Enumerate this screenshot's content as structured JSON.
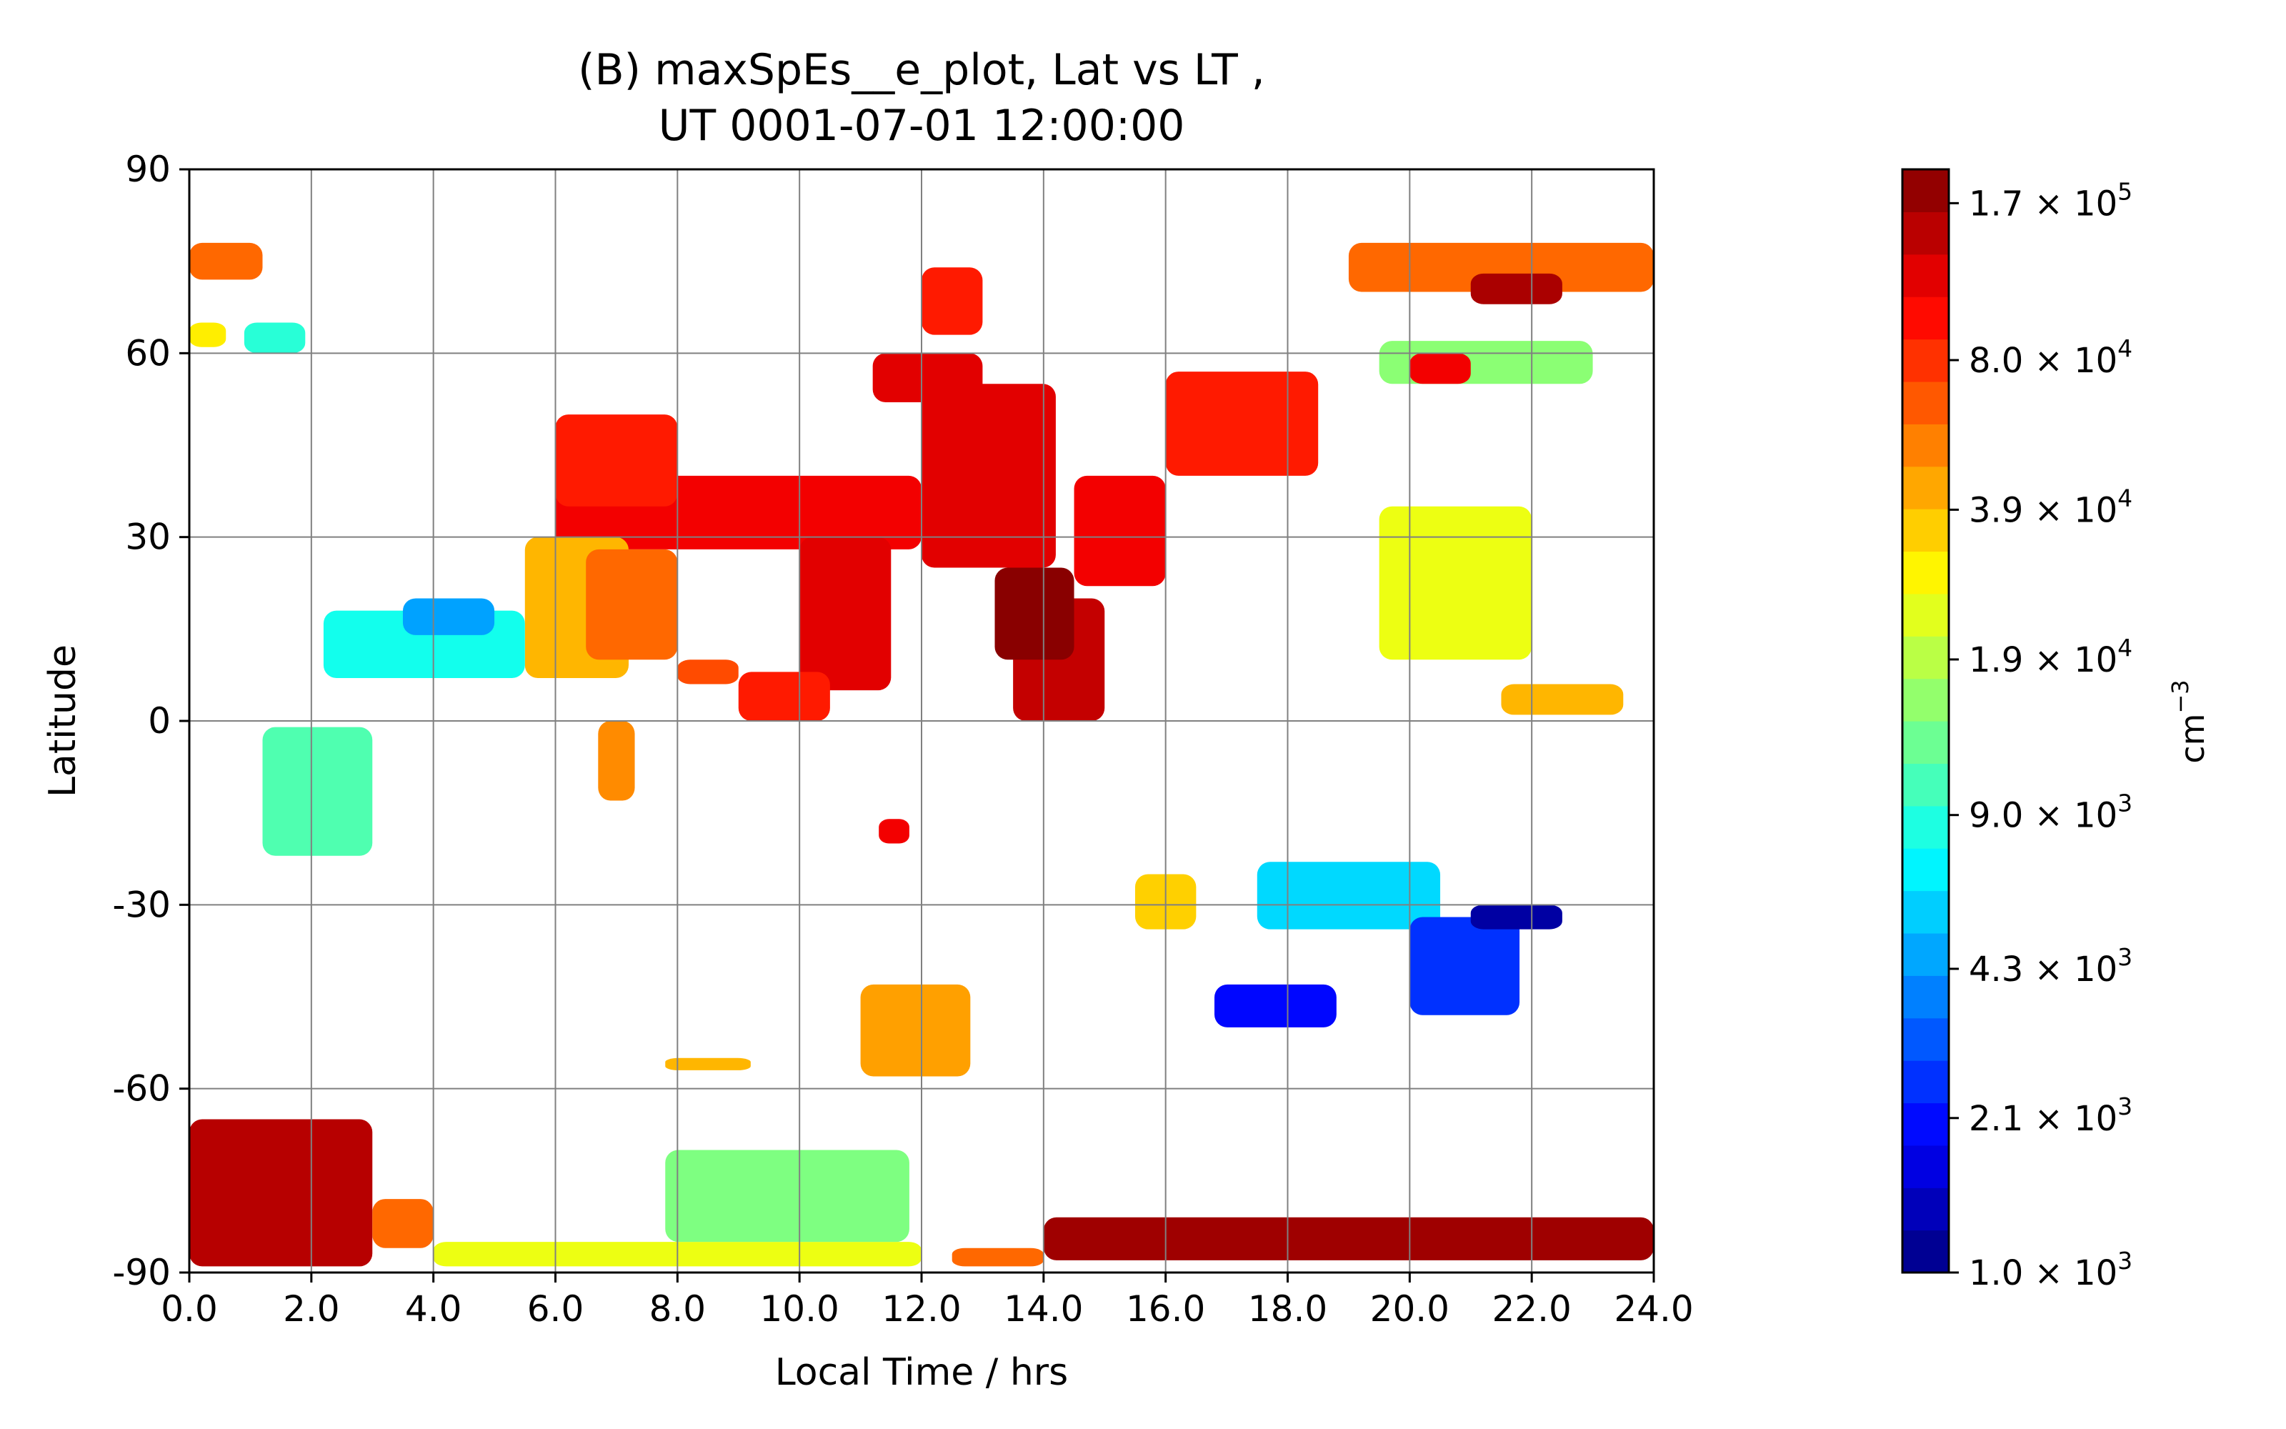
{
  "chart_data": {
    "type": "heatmap",
    "plot_style": "filled contour, log-scaled colour levels (jet colormap)",
    "title_line1": "(B) maxSpEs__e_plot, Lat vs LT ,",
    "title_line2": "UT 0001-07-01 12:00:00",
    "xlabel": "Local Time / hrs",
    "ylabel": "Latitude",
    "xlim": [
      0,
      24
    ],
    "ylim": [
      -90,
      90
    ],
    "x_ticks": [
      0,
      2,
      4,
      6,
      8,
      10,
      12,
      14,
      16,
      18,
      20,
      22,
      24
    ],
    "x_tick_labels": [
      "0.0",
      "2.0",
      "4.0",
      "6.0",
      "8.0",
      "10.0",
      "12.0",
      "14.0",
      "16.0",
      "18.0",
      "20.0",
      "22.0",
      "24.0"
    ],
    "y_ticks": [
      90,
      60,
      30,
      0,
      -30,
      -60,
      -90
    ],
    "y_tick_labels": [
      "90",
      "60",
      "30",
      "0",
      "-30",
      "-60",
      "-90"
    ],
    "grid": true,
    "colorbar": {
      "label_base": "cm",
      "label_exp": "−3",
      "scale": "log",
      "min": 1000,
      "max": 200000,
      "ticks": [
        {
          "value": 170000,
          "mant": "1.7",
          "exp": "5"
        },
        {
          "value": 80000,
          "mant": "8.0",
          "exp": "4"
        },
        {
          "value": 39000,
          "mant": "3.9",
          "exp": "4"
        },
        {
          "value": 19000,
          "mant": "1.9",
          "exp": "4"
        },
        {
          "value": 9000,
          "mant": "9.0",
          "exp": "3"
        },
        {
          "value": 4300,
          "mant": "4.3",
          "exp": "3"
        },
        {
          "value": 2100,
          "mant": "2.1",
          "exp": "3"
        },
        {
          "value": 1000,
          "mant": "1.0",
          "exp": "3"
        }
      ]
    },
    "regions": [
      {
        "lt": [
          0,
          1.2
        ],
        "lat": [
          72,
          78
        ],
        "value": 60000
      },
      {
        "lt": [
          0,
          0.6
        ],
        "lat": [
          61,
          65
        ],
        "value": 30000
      },
      {
        "lt": [
          0.9,
          1.9
        ],
        "lat": [
          60,
          65
        ],
        "value": 9000
      },
      {
        "lt": [
          6,
          12
        ],
        "lat": [
          28,
          40
        ],
        "value": 110000
      },
      {
        "lt": [
          6,
          8
        ],
        "lat": [
          35,
          50
        ],
        "value": 90000
      },
      {
        "lt": [
          5.5,
          7.2
        ],
        "lat": [
          7,
          30
        ],
        "value": 40000
      },
      {
        "lt": [
          6.5,
          8
        ],
        "lat": [
          10,
          28
        ],
        "value": 60000
      },
      {
        "lt": [
          10,
          11.5
        ],
        "lat": [
          5,
          30
        ],
        "value": 120000
      },
      {
        "lt": [
          9,
          10.5
        ],
        "lat": [
          0,
          8
        ],
        "value": 90000
      },
      {
        "lt": [
          12,
          14.2
        ],
        "lat": [
          25,
          55
        ],
        "value": 120000
      },
      {
        "lt": [
          11.2,
          13
        ],
        "lat": [
          52,
          60
        ],
        "value": 120000
      },
      {
        "lt": [
          12,
          13
        ],
        "lat": [
          63,
          74
        ],
        "value": 90000
      },
      {
        "lt": [
          13.5,
          15
        ],
        "lat": [
          0,
          20
        ],
        "value": 140000
      },
      {
        "lt": [
          13.2,
          14.5
        ],
        "lat": [
          10,
          25
        ],
        "value": 190000
      },
      {
        "lt": [
          14.5,
          16
        ],
        "lat": [
          22,
          40
        ],
        "value": 110000
      },
      {
        "lt": [
          16,
          18.5
        ],
        "lat": [
          40,
          57
        ],
        "value": 90000
      },
      {
        "lt": [
          2.2,
          5.5
        ],
        "lat": [
          7,
          18
        ],
        "value": 8000
      },
      {
        "lt": [
          3.5,
          5
        ],
        "lat": [
          14,
          20
        ],
        "value": 4500
      },
      {
        "lt": [
          1.2,
          3
        ],
        "lat": [
          -22,
          -1
        ],
        "value": 11000
      },
      {
        "lt": [
          0,
          3
        ],
        "lat": [
          -89,
          -65
        ],
        "value": 150000
      },
      {
        "lt": [
          3,
          4
        ],
        "lat": [
          -86,
          -78
        ],
        "value": 60000
      },
      {
        "lt": [
          4,
          12
        ],
        "lat": [
          -89,
          -85
        ],
        "value": 25000
      },
      {
        "lt": [
          7.8,
          11.8
        ],
        "lat": [
          -85,
          -70
        ],
        "value": 14000
      },
      {
        "lt": [
          14,
          24
        ],
        "lat": [
          -88,
          -81
        ],
        "value": 170000
      },
      {
        "lt": [
          12.5,
          14
        ],
        "lat": [
          -89,
          -86
        ],
        "value": 60000
      },
      {
        "lt": [
          11,
          12.8
        ],
        "lat": [
          -58,
          -43
        ],
        "value": 45000
      },
      {
        "lt": [
          15.5,
          16.5
        ],
        "lat": [
          -34,
          -25
        ],
        "value": 35000
      },
      {
        "lt": [
          17.5,
          20.5
        ],
        "lat": [
          -34,
          -23
        ],
        "value": 6000
      },
      {
        "lt": [
          20,
          21.8
        ],
        "lat": [
          -48,
          -32
        ],
        "value": 2500
      },
      {
        "lt": [
          21,
          22.5
        ],
        "lat": [
          -34,
          -30
        ],
        "value": 1200
      },
      {
        "lt": [
          16.8,
          18.8
        ],
        "lat": [
          -50,
          -43
        ],
        "value": 2000
      },
      {
        "lt": [
          19,
          24
        ],
        "lat": [
          70,
          78
        ],
        "value": 60000
      },
      {
        "lt": [
          21,
          22.5
        ],
        "lat": [
          68,
          73
        ],
        "value": 160000
      },
      {
        "lt": [
          19.5,
          23
        ],
        "lat": [
          55,
          62
        ],
        "value": 15000
      },
      {
        "lt": [
          20,
          21
        ],
        "lat": [
          55,
          60
        ],
        "value": 110000
      },
      {
        "lt": [
          19.5,
          22
        ],
        "lat": [
          10,
          35
        ],
        "value": 25000
      },
      {
        "lt": [
          21.5,
          23.5
        ],
        "lat": [
          1,
          6
        ],
        "value": 40000
      },
      {
        "lt": [
          6.7,
          7.3
        ],
        "lat": [
          -13,
          0
        ],
        "value": 50000
      },
      {
        "lt": [
          8,
          9
        ],
        "lat": [
          6,
          10
        ],
        "value": 70000
      },
      {
        "lt": [
          11.3,
          11.8
        ],
        "lat": [
          -20,
          -16
        ],
        "value": 110000
      },
      {
        "lt": [
          7.8,
          9.2
        ],
        "lat": [
          -57,
          -55
        ],
        "value": 40000
      }
    ]
  }
}
